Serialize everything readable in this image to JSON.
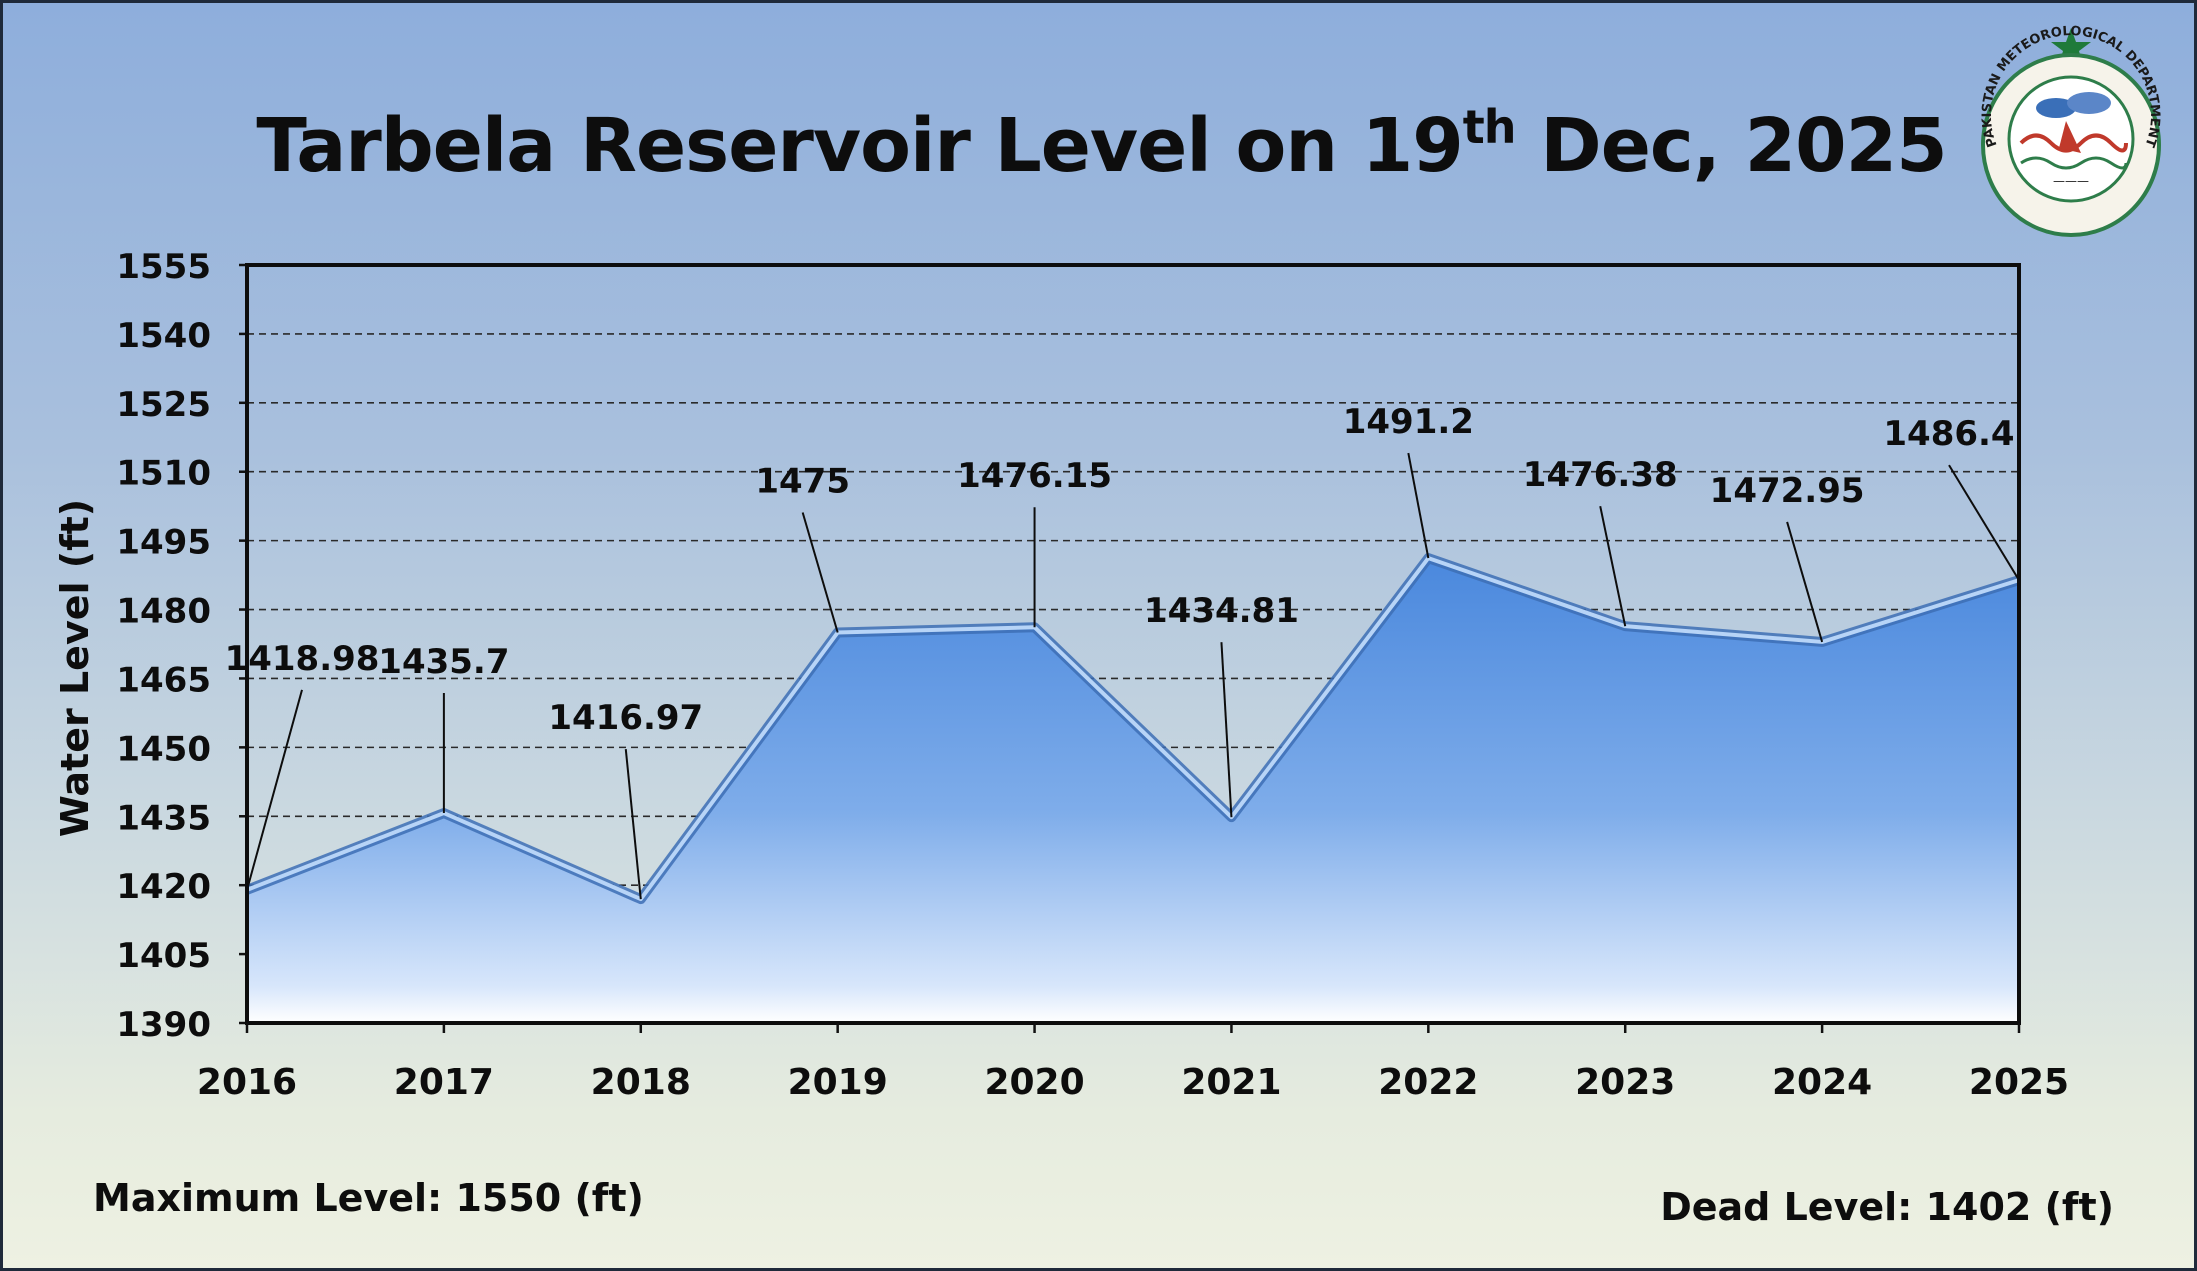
{
  "title": {
    "prefix": "Tarbela Reservoir Level on 19",
    "superscript": "th",
    "suffix": " Dec, 2025"
  },
  "logo": {
    "text": "PAKISTAN METEOROLOGICAL DEPARTMENT",
    "icon": "pmd-emblem-icon"
  },
  "footer": {
    "max_level": "Maximum Level: 1550 (ft)",
    "dead_level": "Dead Level: 1402 (ft)"
  },
  "colors": {
    "area_top": "#4f8fe0",
    "area_bottom": "#e8f1ff",
    "grid": "#2a2a2a",
    "text": "#0d0d0d"
  },
  "chart_data": {
    "type": "area",
    "title": "Tarbela Reservoir Level on 19th Dec, 2025",
    "xlabel": "",
    "ylabel": "Water Level (ft)",
    "categories": [
      "2016",
      "2017",
      "2018",
      "2019",
      "2020",
      "2021",
      "2022",
      "2023",
      "2024",
      "2025"
    ],
    "values": [
      1418.98,
      1435.7,
      1416.97,
      1475,
      1476.15,
      1434.81,
      1491.2,
      1476.38,
      1472.95,
      1486.4
    ],
    "value_labels": [
      "1418.98",
      "1435.7",
      "1416.97",
      "1475",
      "1476.15",
      "1434.81",
      "1491.2",
      "1476.38",
      "1472.95",
      "1486.4"
    ],
    "ylim": [
      1390,
      1555
    ],
    "yticks": [
      "1390",
      "1405",
      "1420",
      "1435",
      "1450",
      "1465",
      "1480",
      "1495",
      "1510",
      "1525",
      "1540",
      "1555"
    ],
    "grid": true,
    "legend": "none"
  }
}
